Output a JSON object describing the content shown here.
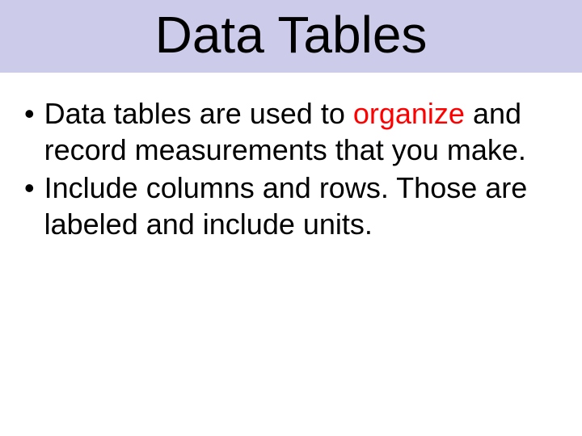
{
  "title": "Data Tables",
  "title_band_color": "#ccccea",
  "title_fontsize": 64,
  "title_color": "#000000",
  "background_color": "#ffffff",
  "body_fontsize": 36,
  "body_color": "#000000",
  "highlight_color": "#ff0000",
  "bullets": [
    {
      "pre": "Data tables are used to ",
      "highlight": "organize",
      "post": " and record measurements that you make."
    },
    {
      "pre": "Include columns and rows. Those are labeled and include units.",
      "highlight": "",
      "post": ""
    }
  ]
}
